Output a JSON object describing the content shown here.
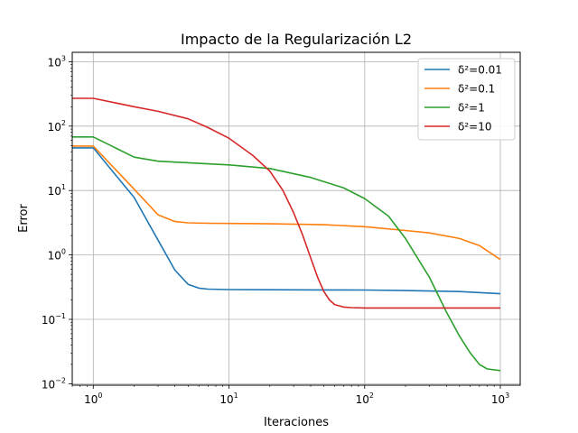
{
  "chart_data": {
    "type": "line",
    "title": "Impacto de la Regularización L2",
    "xlabel": "Iteraciones",
    "ylabel": "Error",
    "xscale": "log",
    "yscale": "log",
    "xlim": [
      0.7,
      1400
    ],
    "ylim": [
      0.0095,
      1400
    ],
    "grid": true,
    "legend_position": "top-right",
    "x_ticks": [
      {
        "value": 1,
        "base": "10",
        "exp": "0"
      },
      {
        "value": 10,
        "base": "10",
        "exp": "1"
      },
      {
        "value": 100,
        "base": "10",
        "exp": "2"
      },
      {
        "value": 1000,
        "base": "10",
        "exp": "3"
      }
    ],
    "y_ticks": [
      {
        "value": 0.01,
        "base": "10",
        "exp": "−2"
      },
      {
        "value": 0.1,
        "base": "10",
        "exp": "−1"
      },
      {
        "value": 1,
        "base": "10",
        "exp": "0"
      },
      {
        "value": 10,
        "base": "10",
        "exp": "1"
      },
      {
        "value": 100,
        "base": "10",
        "exp": "2"
      },
      {
        "value": 1000,
        "base": "10",
        "exp": "3"
      }
    ],
    "series": [
      {
        "name": "δ²=0.01",
        "color": "#1f77b4",
        "x": [
          0.7,
          1,
          2,
          3,
          4,
          5,
          6,
          7,
          10,
          20,
          50,
          100,
          200,
          500,
          1000
        ],
        "y": [
          46,
          46,
          7.8,
          1.7,
          0.58,
          0.35,
          0.305,
          0.295,
          0.29,
          0.288,
          0.286,
          0.285,
          0.28,
          0.27,
          0.25
        ]
      },
      {
        "name": "δ²=0.1",
        "color": "#ff7f0e",
        "x": [
          0.7,
          1,
          2,
          3,
          4,
          5,
          7,
          10,
          20,
          50,
          100,
          200,
          300,
          500,
          700,
          1000
        ],
        "y": [
          49,
          49,
          10.5,
          4.2,
          3.3,
          3.15,
          3.1,
          3.08,
          3.04,
          2.95,
          2.75,
          2.4,
          2.2,
          1.8,
          1.4,
          0.85
        ]
      },
      {
        "name": "δ²=1",
        "color": "#2ca02c",
        "x": [
          0.7,
          1,
          2,
          3,
          5,
          10,
          20,
          40,
          70,
          100,
          150,
          200,
          300,
          400,
          500,
          600,
          700,
          800,
          1000
        ],
        "y": [
          68,
          68,
          33,
          28.5,
          27,
          25,
          22,
          16,
          11,
          7.5,
          4,
          1.8,
          0.45,
          0.13,
          0.055,
          0.03,
          0.02,
          0.017,
          0.016
        ]
      },
      {
        "name": "δ²=10",
        "color": "#d62728",
        "x": [
          0.7,
          1,
          2,
          3,
          5,
          7,
          10,
          15,
          20,
          25,
          30,
          35,
          40,
          45,
          50,
          55,
          60,
          70,
          80,
          100,
          200,
          1000
        ],
        "y": [
          270,
          270,
          200,
          170,
          130,
          95,
          65,
          35,
          20,
          10,
          4.5,
          2,
          0.9,
          0.45,
          0.27,
          0.2,
          0.17,
          0.155,
          0.152,
          0.15,
          0.15,
          0.15
        ]
      }
    ]
  }
}
